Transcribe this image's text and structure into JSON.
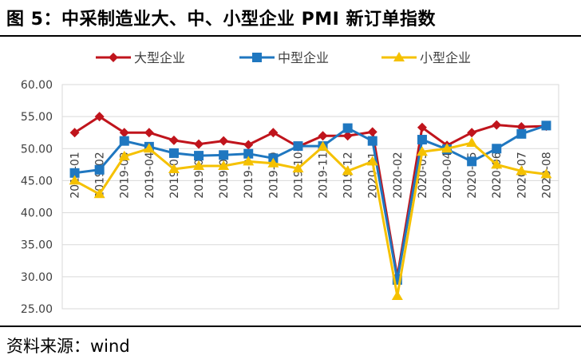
{
  "header": {
    "title": "图 5：中采制造业大、中、小型企业 PMI 新订单指数"
  },
  "footer": {
    "source": "资料来源：wind"
  },
  "chart_data": {
    "type": "line",
    "categories": [
      "2019-01",
      "2019-02",
      "2019-03",
      "2019-04",
      "2019-05",
      "2019-06",
      "2019-07",
      "2019-08",
      "2019-09",
      "2019-10",
      "2019-11",
      "2019-12",
      "2020-01",
      "2020-02",
      "2020-03",
      "2020-04",
      "2020-05",
      "2020-06",
      "2020-07",
      "2020-08"
    ],
    "ylim": [
      25,
      60
    ],
    "yticks": [
      "60.00",
      "55.00",
      "50.00",
      "45.00",
      "40.00",
      "35.00",
      "30.00",
      "25.00"
    ],
    "grid": true,
    "legend_position": "top",
    "series": [
      {
        "name": "大型企业",
        "color": "#C0141C",
        "marker": "diamond",
        "values": [
          52.5,
          55.0,
          52.5,
          52.5,
          51.3,
          50.7,
          51.2,
          50.6,
          52.5,
          50.3,
          52.0,
          52.0,
          52.6,
          30.0,
          53.3,
          50.5,
          52.5,
          53.7,
          53.4,
          53.5
        ]
      },
      {
        "name": "中型企业",
        "color": "#1F77C0",
        "marker": "square",
        "values": [
          46.2,
          46.7,
          51.2,
          50.3,
          49.3,
          48.9,
          49.0,
          49.2,
          48.5,
          50.4,
          50.4,
          53.2,
          51.2,
          29.5,
          51.4,
          49.9,
          48.0,
          50.0,
          52.3,
          53.6
        ]
      },
      {
        "name": "小型企业",
        "color": "#F5C100",
        "marker": "triangle",
        "values": [
          45.0,
          42.9,
          48.8,
          50.0,
          46.8,
          47.3,
          47.3,
          48.0,
          47.7,
          46.9,
          50.3,
          46.5,
          48.0,
          27.0,
          49.5,
          50.0,
          50.9,
          47.5,
          46.5,
          46.0
        ]
      }
    ]
  }
}
